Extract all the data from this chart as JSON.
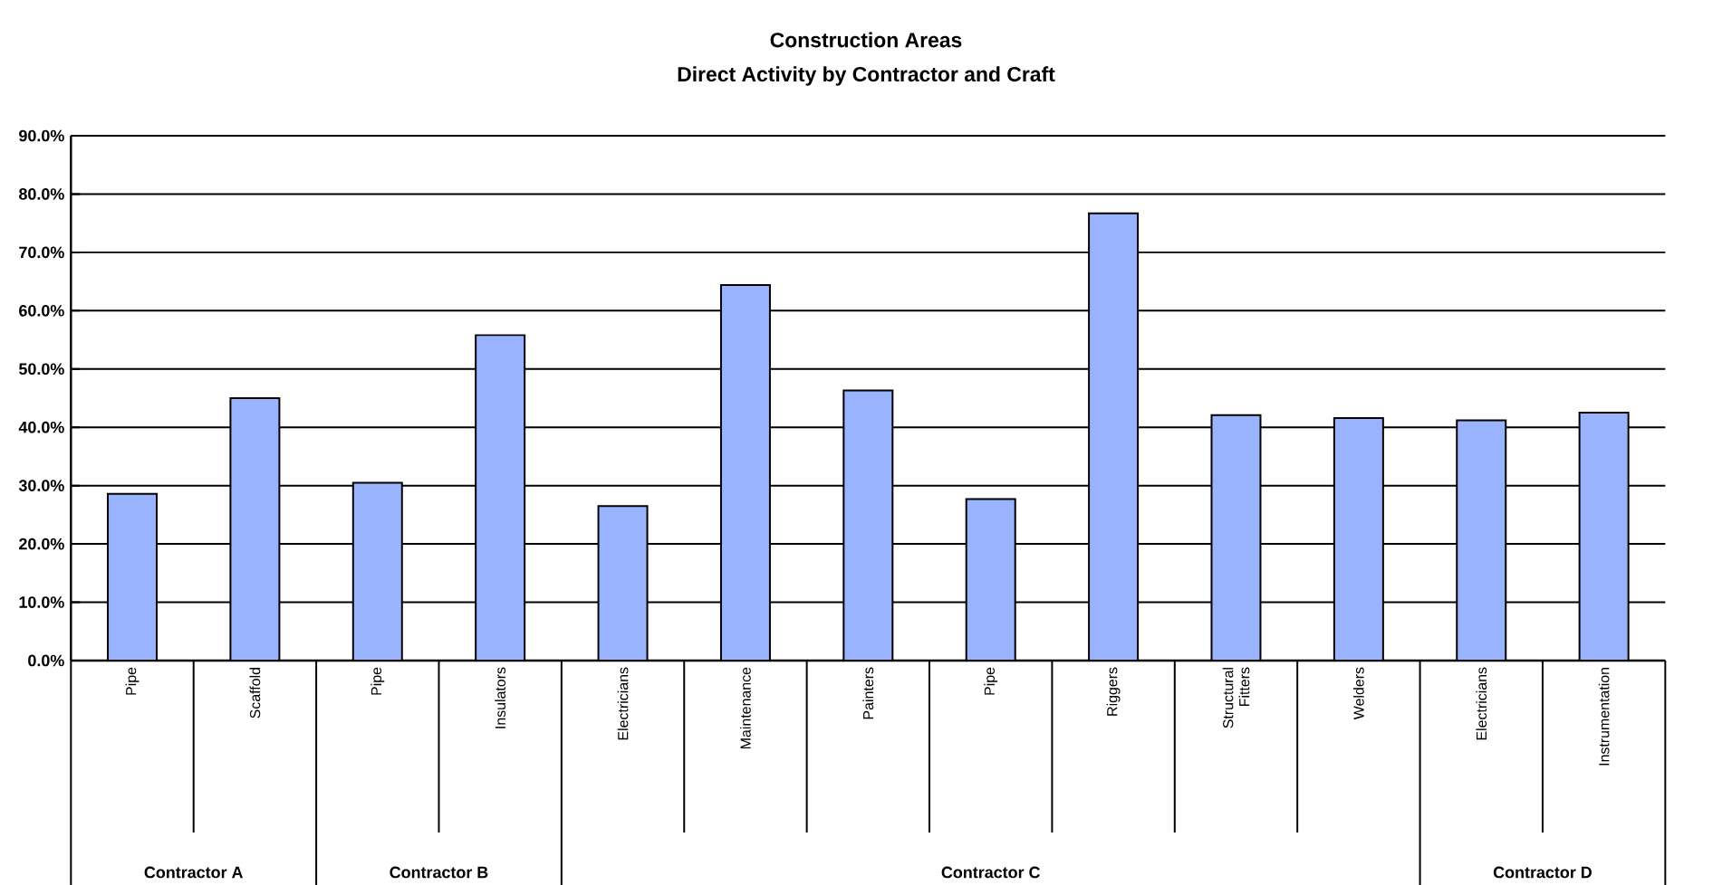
{
  "chart_data": {
    "type": "bar",
    "title": "Construction Areas",
    "subtitle": "Direct Activity by Contractor and Craft",
    "categories": [
      "Pipe",
      "Scaffold",
      "Pipe",
      "Insulators",
      "Electricians",
      "Maintenance",
      "Painters",
      "Pipe",
      "Riggers",
      "Structural Fitters",
      "Welders",
      "Electricians",
      "Instrumentation"
    ],
    "values": [
      28.6,
      45.0,
      30.5,
      55.8,
      26.5,
      64.4,
      46.3,
      27.7,
      76.7,
      42.1,
      41.6,
      41.2,
      42.5
    ],
    "color": "#99b3ff",
    "ylim": [
      0,
      90
    ],
    "yticks": [
      {
        "value": 0,
        "label": "0.0%"
      },
      {
        "value": 10,
        "label": "10.0%"
      },
      {
        "value": 20,
        "label": "20.0%"
      },
      {
        "value": 30,
        "label": "30.0%"
      },
      {
        "value": 40,
        "label": "40.0%"
      },
      {
        "value": 50,
        "label": "50.0%"
      },
      {
        "value": 60,
        "label": "60.0%"
      },
      {
        "value": 70,
        "label": "70.0%"
      },
      {
        "value": 80,
        "label": "80.0%"
      },
      {
        "value": 90,
        "label": "90.0%"
      }
    ],
    "grid": "y",
    "annotations": [
      "Contractor A",
      "Contractor B",
      "Contractor C",
      "Contractor D"
    ]
  }
}
